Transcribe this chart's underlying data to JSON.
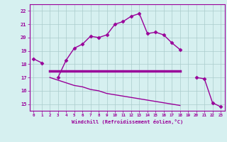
{
  "xlabel": "Windchill (Refroidissement éolien,°C)",
  "x": [
    0,
    1,
    2,
    3,
    4,
    5,
    6,
    7,
    8,
    9,
    10,
    11,
    12,
    13,
    14,
    15,
    16,
    17,
    18,
    19,
    20,
    21,
    22,
    23
  ],
  "line1": [
    18.4,
    18.1,
    null,
    17.0,
    18.3,
    19.2,
    19.5,
    20.1,
    20.0,
    20.2,
    21.0,
    21.2,
    21.6,
    21.8,
    20.3,
    20.4,
    20.2,
    19.6,
    19.1,
    null,
    17.0,
    16.9,
    15.1,
    14.8
  ],
  "line2": [
    null,
    null,
    17.5,
    17.5,
    17.5,
    17.5,
    17.5,
    17.5,
    17.5,
    17.5,
    17.5,
    17.5,
    17.5,
    17.5,
    17.5,
    17.5,
    17.5,
    17.5,
    17.5,
    null,
    null,
    null,
    null,
    null
  ],
  "line3": [
    null,
    null,
    17.0,
    16.8,
    16.6,
    16.4,
    16.3,
    16.1,
    16.0,
    15.8,
    15.7,
    15.6,
    15.5,
    15.4,
    15.3,
    15.2,
    15.1,
    15.0,
    14.9,
    null,
    null,
    null,
    null,
    null
  ],
  "ylim": [
    14.5,
    22.5
  ],
  "xlim": [
    -0.5,
    23.5
  ],
  "yticks": [
    15,
    16,
    17,
    18,
    19,
    20,
    21,
    22
  ],
  "xticks": [
    0,
    1,
    2,
    3,
    4,
    5,
    6,
    7,
    8,
    9,
    10,
    11,
    12,
    13,
    14,
    15,
    16,
    17,
    18,
    19,
    20,
    21,
    22,
    23
  ],
  "line_color": "#990099",
  "bg_color": "#d6f0f0",
  "grid_color": "#aacccc",
  "marker": "D",
  "marker_size": 2.5
}
